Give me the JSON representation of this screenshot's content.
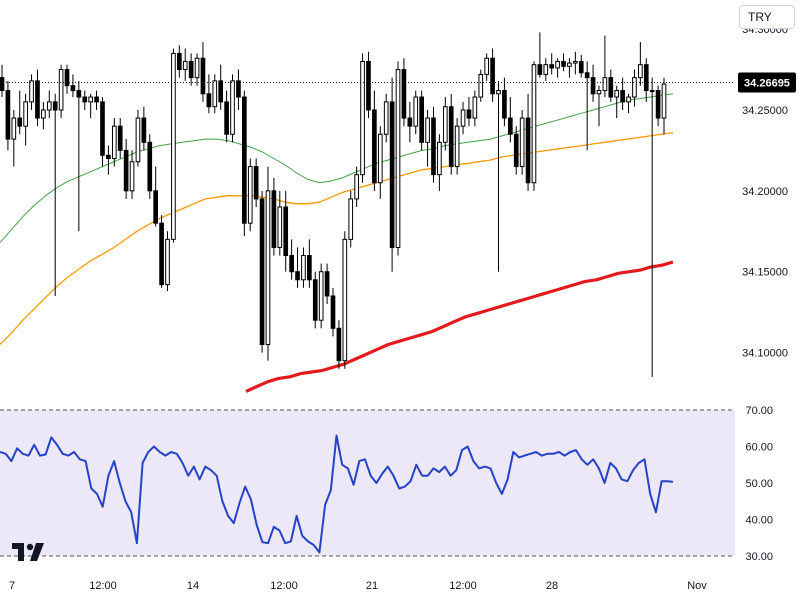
{
  "currency_selector": "TRY",
  "chart_data": [
    {
      "type": "line",
      "subtype": "candlestick_with_moving_averages",
      "ylim": [
        34.075,
        34.318
      ],
      "yticks": [
        "34.10000",
        "34.15000",
        "34.20000",
        "34.25000",
        "34.30000"
      ],
      "ytick_values": [
        34.1,
        34.15,
        34.2,
        34.25,
        34.3
      ],
      "last_price": "34.26695",
      "last_price_value": 34.26695,
      "xticks": [
        "7",
        "12:00",
        "14",
        "12:00",
        "21",
        "12:00",
        "28",
        "Nov"
      ],
      "grid": false,
      "colors": {
        "up_body": "#ffffff",
        "down_body": "#000000",
        "wick": "#000000",
        "ma_fast": "#43a047",
        "ma_mid": "#ff9800",
        "ma_slow": "#e31a1c",
        "price_line": "#131722"
      },
      "candles": [
        [
          34.27,
          34.278,
          34.258,
          34.262
        ],
        [
          34.262,
          34.268,
          34.225,
          34.232
        ],
        [
          34.232,
          34.25,
          34.215,
          34.245
        ],
        [
          34.245,
          34.262,
          34.235,
          34.24
        ],
        [
          34.24,
          34.26,
          34.228,
          34.255
        ],
        [
          34.255,
          34.272,
          34.25,
          34.268
        ],
        [
          34.268,
          34.275,
          34.24,
          34.245
        ],
        [
          34.245,
          34.255,
          34.238,
          34.25
        ],
        [
          34.25,
          34.262,
          34.245,
          34.255
        ],
        [
          34.255,
          34.26,
          34.135,
          34.25
        ],
        [
          34.25,
          34.278,
          34.245,
          34.275
        ],
        [
          34.275,
          34.278,
          34.26,
          34.265
        ],
        [
          34.265,
          34.272,
          34.258,
          34.262
        ],
        [
          34.262,
          34.268,
          34.175,
          34.258
        ],
        [
          34.258,
          34.262,
          34.25,
          34.255
        ],
        [
          34.255,
          34.26,
          34.245,
          34.258
        ],
        [
          34.258,
          34.262,
          34.25,
          34.255
        ],
        [
          34.255,
          34.258,
          34.215,
          34.222
        ],
        [
          34.222,
          34.228,
          34.21,
          34.22
        ],
        [
          34.22,
          34.245,
          34.215,
          34.24
        ],
        [
          34.24,
          34.245,
          34.22,
          34.225
        ],
        [
          34.225,
          34.232,
          34.195,
          34.2
        ],
        [
          34.2,
          34.225,
          34.195,
          34.218
        ],
        [
          34.218,
          34.25,
          34.215,
          34.245
        ],
        [
          34.245,
          34.252,
          34.225,
          34.23
        ],
        [
          34.23,
          34.235,
          34.195,
          34.2
        ],
        [
          34.2,
          34.215,
          34.178,
          34.18
        ],
        [
          34.18,
          34.185,
          34.14,
          34.142
        ],
        [
          34.142,
          34.175,
          34.138,
          34.17
        ],
        [
          34.17,
          34.288,
          34.168,
          34.285
        ],
        [
          34.285,
          34.29,
          34.27,
          34.275
        ],
        [
          34.275,
          34.288,
          34.268,
          34.28
        ],
        [
          34.28,
          34.285,
          34.265,
          34.27
        ],
        [
          34.27,
          34.285,
          34.265,
          34.282
        ],
        [
          34.282,
          34.292,
          34.255,
          34.26
        ],
        [
          34.26,
          34.272,
          34.248,
          34.252
        ],
        [
          34.252,
          34.272,
          34.248,
          34.268
        ],
        [
          34.268,
          34.278,
          34.25,
          34.255
        ],
        [
          34.255,
          34.262,
          34.23,
          34.235
        ],
        [
          34.235,
          34.272,
          34.23,
          34.268
        ],
        [
          34.268,
          34.275,
          34.25,
          34.258
        ],
        [
          34.258,
          34.262,
          34.172,
          34.18
        ],
        [
          34.18,
          34.22,
          34.175,
          34.215
        ],
        [
          34.215,
          34.22,
          34.19,
          34.195
        ],
        [
          34.195,
          34.2,
          34.1,
          34.105
        ],
        [
          34.105,
          34.215,
          34.095,
          34.2
        ],
        [
          34.2,
          34.208,
          34.16,
          34.165
        ],
        [
          34.165,
          34.2,
          34.16,
          34.19
        ],
        [
          34.19,
          34.2,
          34.15,
          34.16
        ],
        [
          34.16,
          34.17,
          34.145,
          34.15
        ],
        [
          34.15,
          34.165,
          34.14,
          34.145
        ],
        [
          34.145,
          34.165,
          34.14,
          34.16
        ],
        [
          34.16,
          34.17,
          34.14,
          34.145
        ],
        [
          34.145,
          34.15,
          34.115,
          34.12
        ],
        [
          34.12,
          34.155,
          34.115,
          34.15
        ],
        [
          34.15,
          34.155,
          34.13,
          34.135
        ],
        [
          34.135,
          34.14,
          34.11,
          34.115
        ],
        [
          34.115,
          34.12,
          34.09,
          34.095
        ],
        [
          34.095,
          34.175,
          34.09,
          34.17
        ],
        [
          34.17,
          34.2,
          34.165,
          34.195
        ],
        [
          34.195,
          34.215,
          34.19,
          34.21
        ],
        [
          34.21,
          34.285,
          34.205,
          34.28
        ],
        [
          34.28,
          34.286,
          34.245,
          34.25
        ],
        [
          34.25,
          34.262,
          34.2,
          34.205
        ],
        [
          34.205,
          34.24,
          34.195,
          34.235
        ],
        [
          34.235,
          34.26,
          34.23,
          34.255
        ],
        [
          34.255,
          34.27,
          34.15,
          34.165
        ],
        [
          34.165,
          34.28,
          34.16,
          34.275
        ],
        [
          34.275,
          34.282,
          34.24,
          34.245
        ],
        [
          34.245,
          34.255,
          34.23,
          34.24
        ],
        [
          34.24,
          34.262,
          34.235,
          34.258
        ],
        [
          34.258,
          34.262,
          34.225,
          34.23
        ],
        [
          34.23,
          34.25,
          34.215,
          34.245
        ],
        [
          34.245,
          34.252,
          34.205,
          34.21
        ],
        [
          34.21,
          34.235,
          34.2,
          34.23
        ],
        [
          34.23,
          34.258,
          34.225,
          34.252
        ],
        [
          34.252,
          34.26,
          34.21,
          34.215
        ],
        [
          34.215,
          34.245,
          34.21,
          34.24
        ],
        [
          34.24,
          34.255,
          34.235,
          34.25
        ],
        [
          34.25,
          34.258,
          34.24,
          34.245
        ],
        [
          34.245,
          34.262,
          34.24,
          34.258
        ],
        [
          34.258,
          34.275,
          34.255,
          34.272
        ],
        [
          34.272,
          34.285,
          34.268,
          34.282
        ],
        [
          34.282,
          34.288,
          34.255,
          34.26
        ],
        [
          34.26,
          34.268,
          34.15,
          34.262
        ],
        [
          34.262,
          34.27,
          34.24,
          34.245
        ],
        [
          34.245,
          34.258,
          34.23,
          34.235
        ],
        [
          34.235,
          34.24,
          34.21,
          34.215
        ],
        [
          34.215,
          34.25,
          34.21,
          34.245
        ],
        [
          34.245,
          34.26,
          34.2,
          34.205
        ],
        [
          34.205,
          34.28,
          34.2,
          34.278
        ],
        [
          34.278,
          34.298,
          34.27,
          34.272
        ],
        [
          34.272,
          34.282,
          34.268,
          34.278
        ],
        [
          34.278,
          34.285,
          34.272,
          34.276
        ],
        [
          34.276,
          34.282,
          34.27,
          34.28
        ],
        [
          34.28,
          34.285,
          34.274,
          34.277
        ],
        [
          34.277,
          34.282,
          34.27,
          34.279
        ],
        [
          34.279,
          34.286,
          34.272,
          34.28
        ],
        [
          34.28,
          34.284,
          34.27,
          34.273
        ],
        [
          34.273,
          34.28,
          34.225,
          34.27
        ],
        [
          34.27,
          34.278,
          34.255,
          34.26
        ],
        [
          34.26,
          34.265,
          34.24,
          34.262
        ],
        [
          34.262,
          34.296,
          34.258,
          34.27
        ],
        [
          34.27,
          34.275,
          34.255,
          34.258
        ],
        [
          34.258,
          34.265,
          34.245,
          34.262
        ],
        [
          34.262,
          34.27,
          34.25,
          34.255
        ],
        [
          34.255,
          34.26,
          34.248,
          34.258
        ],
        [
          34.258,
          34.275,
          34.252,
          34.27
        ],
        [
          34.27,
          34.292,
          34.265,
          34.278
        ],
        [
          34.278,
          34.282,
          34.255,
          34.262
        ],
        [
          34.262,
          34.27,
          34.085,
          34.262
        ],
        [
          34.262,
          34.265,
          34.24,
          34.245
        ],
        [
          34.245,
          34.27,
          34.235,
          34.266
        ]
      ],
      "ma_fast": [
        34.168,
        34.176,
        34.184,
        34.191,
        34.197,
        34.202,
        34.206,
        34.209,
        34.212,
        34.215,
        34.218,
        34.221,
        34.224,
        34.226,
        34.228,
        34.229,
        34.23,
        34.231,
        34.232,
        34.232,
        34.231,
        34.229,
        34.227,
        34.224,
        34.22,
        34.216,
        34.211,
        34.207,
        34.205,
        34.206,
        34.208,
        34.211,
        34.214,
        34.217,
        34.219,
        34.221,
        34.223,
        34.225,
        34.226,
        34.228,
        34.229,
        34.23,
        34.231,
        34.232,
        34.234,
        34.236,
        34.238,
        34.24,
        34.242,
        34.244,
        34.246,
        34.248,
        34.25,
        34.252,
        34.254,
        34.256,
        34.257,
        34.258,
        34.259,
        34.26
      ],
      "ma_mid": [
        34.105,
        34.112,
        34.12,
        34.127,
        34.134,
        34.141,
        34.147,
        34.152,
        34.157,
        34.161,
        34.165,
        34.17,
        34.175,
        34.179,
        34.183,
        34.186,
        34.189,
        34.192,
        34.195,
        34.196,
        34.197,
        34.197,
        34.197,
        34.196,
        34.195,
        34.193,
        34.192,
        34.192,
        34.193,
        34.196,
        34.199,
        34.201,
        34.203,
        34.205,
        34.207,
        34.209,
        34.211,
        34.213,
        34.214,
        34.215,
        34.216,
        34.217,
        34.218,
        34.219,
        34.221,
        34.222,
        34.223,
        34.224,
        34.225,
        34.226,
        34.227,
        34.228,
        34.229,
        34.23,
        34.231,
        34.232,
        34.233,
        34.234,
        34.235,
        34.236
      ],
      "ma_slow": [
        34.076,
        34.079,
        34.082,
        34.084,
        34.085,
        34.087,
        34.088,
        34.089,
        34.091,
        34.093,
        34.096,
        34.099,
        34.102,
        34.105,
        34.107,
        34.109,
        34.111,
        34.113,
        34.116,
        34.119,
        34.122,
        34.124,
        34.126,
        34.128,
        34.13,
        34.132,
        34.134,
        34.136,
        34.138,
        34.14,
        34.142,
        34.144,
        34.145,
        34.147,
        34.149,
        34.15,
        34.151,
        34.153,
        34.154,
        34.156
      ]
    },
    {
      "type": "line",
      "ylim": [
        30,
        70
      ],
      "yticks": [
        "30.00",
        "40.00",
        "50.00",
        "60.00",
        "70.00"
      ],
      "ytick_values": [
        30,
        40,
        50,
        60,
        70
      ],
      "band": [
        30,
        70
      ],
      "colors": {
        "line": "#2443c8",
        "band_fill": "#ece8f7",
        "band_edge": "#555555"
      },
      "values": [
        58.5,
        58.0,
        56.0,
        59.5,
        58.0,
        57.5,
        60.5,
        57.5,
        57.8,
        62.5,
        60.5,
        58.0,
        57.5,
        58.5,
        56.5,
        56.0,
        48.5,
        47.0,
        43.5,
        52.0,
        56.0,
        50.0,
        45.0,
        42.0,
        33.5,
        55.5,
        58.5,
        60.0,
        58.5,
        57.5,
        58.5,
        58.0,
        55.5,
        52.0,
        54.5,
        51.0,
        54.5,
        53.5,
        52.0,
        45.0,
        41.0,
        39.0,
        44.5,
        49.0,
        45.5,
        38.5,
        33.8,
        33.5,
        38.0,
        37.0,
        33.5,
        34.0,
        41.0,
        35.5,
        34.0,
        33.0,
        31.0,
        44.0,
        48.0,
        63.0,
        55.0,
        54.0,
        49.5,
        56.0,
        56.5,
        52.0,
        50.0,
        52.5,
        54.5,
        52.0,
        48.5,
        49.0,
        50.5,
        55.0,
        52.0,
        52.0,
        54.0,
        53.0,
        54.5,
        52.0,
        53.5,
        59.0,
        60.0,
        56.0,
        54.0,
        54.5,
        54.0,
        50.0,
        47.0,
        51.0,
        58.5,
        57.0,
        57.5,
        58.0,
        58.5,
        57.5,
        58.0,
        58.0,
        58.5,
        57.5,
        58.5,
        59.0,
        56.5,
        55.0,
        56.5,
        54.0,
        50.0,
        55.5,
        54.0,
        51.0,
        50.5,
        53.5,
        55.5,
        56.5,
        47.0,
        42.0,
        50.5,
        50.5,
        50.3
      ]
    }
  ]
}
